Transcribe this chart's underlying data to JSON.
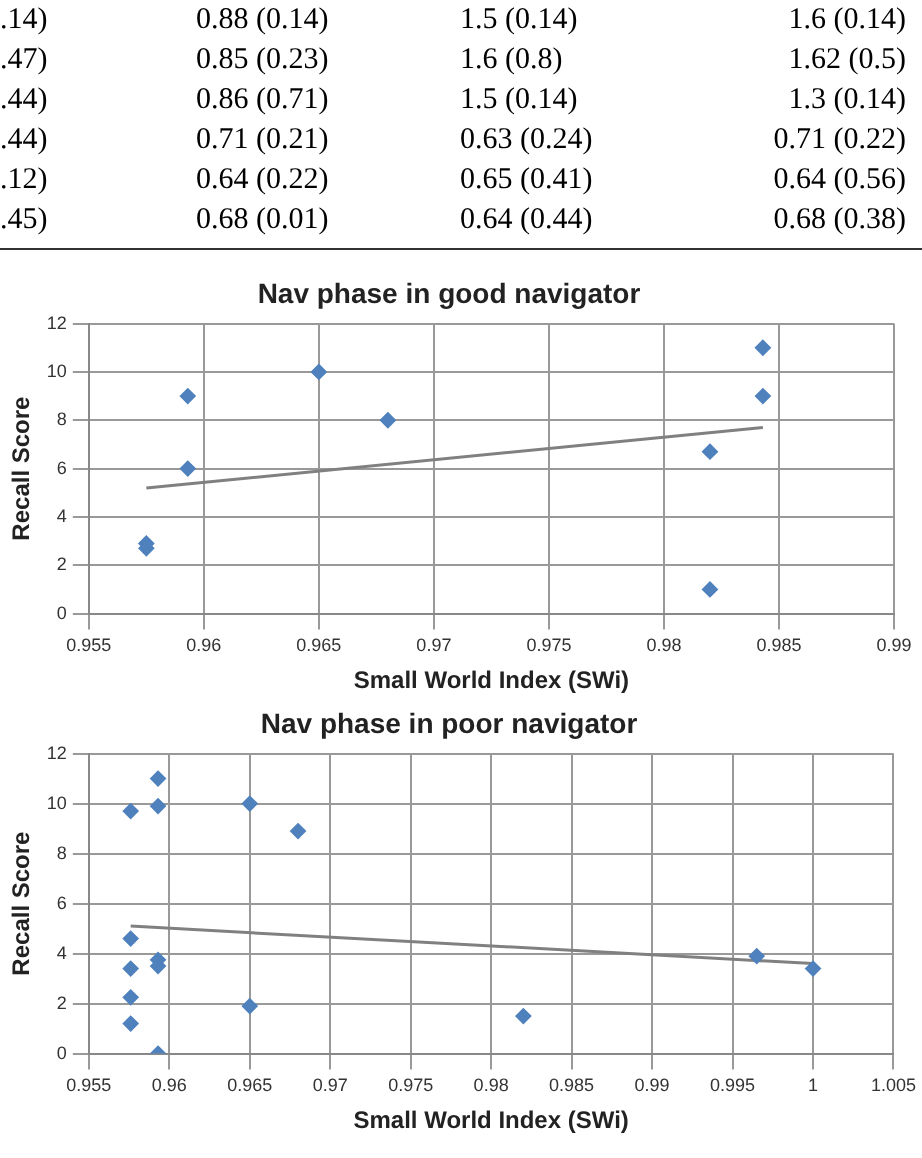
{
  "chart_data": [
    {
      "type": "other",
      "annotations": [
        ".14)",
        "0.88 (0.14)",
        "1.5 (0.14)",
        "1.6 (0.14)",
        ".47)",
        "0.85 (0.23)",
        "1.6 (0.8)",
        "1.62 (0.5)",
        ".44)",
        "0.86 (0.71)",
        "1.5 (0.14)",
        "1.3 (0.14)",
        ".44)",
        "0.71 (0.21)",
        "0.63 (0.24)",
        "0.71 (0.22)",
        ".12)",
        "0.64 (0.22)",
        "0.65 (0.41)",
        "0.64 (0.56)",
        ".45)",
        "0.68 (0.01)",
        "0.64 (0.44)",
        "0.68 (0.38)"
      ]
    },
    {
      "type": "scatter",
      "title": "Nav phase in good navigator",
      "xlabel": "Small World Index (SWi)",
      "ylabel": "Recall Score",
      "xlim": [
        0.955,
        0.99
      ],
      "xticks": [
        0.955,
        0.96,
        0.965,
        0.97,
        0.975,
        0.98,
        0.985,
        0.99
      ],
      "ylim": [
        0,
        12
      ],
      "yticks": [
        0,
        2,
        4,
        6,
        8,
        10,
        12
      ],
      "grid": true,
      "legend": false,
      "series": [
        {
          "type": "scatter",
          "color": "#4f81bd",
          "marker": "diamond",
          "x": [
            0.9575,
            0.9575,
            0.9593,
            0.9593,
            0.965,
            0.968,
            0.982,
            0.982,
            0.9843,
            0.9843
          ],
          "values": [
            2.9,
            2.7,
            9,
            6,
            10,
            8,
            6.7,
            1,
            11,
            9
          ]
        },
        {
          "type": "line",
          "color": "#808080",
          "marker": "none",
          "x": [
            0.9575,
            0.9843
          ],
          "values": [
            5.2,
            7.7
          ]
        }
      ]
    },
    {
      "type": "scatter",
      "title": "Nav phase in poor navigator",
      "xlabel": "Small World Index (SWi)",
      "ylabel": "Recall Score",
      "xlim": [
        0.955,
        1.005
      ],
      "xticks": [
        0.955,
        0.96,
        0.965,
        0.97,
        0.975,
        0.98,
        0.985,
        0.99,
        0.995,
        1,
        1.005
      ],
      "ylim": [
        0,
        12
      ],
      "yticks": [
        0,
        2,
        4,
        6,
        8,
        10,
        12
      ],
      "grid": true,
      "legend": false,
      "series": [
        {
          "type": "scatter",
          "color": "#4f81bd",
          "marker": "diamond",
          "x": [
            0.9576,
            0.9576,
            0.9576,
            0.9576,
            0.9576,
            0.9593,
            0.9593,
            0.9593,
            0.9593,
            0.9593,
            0.965,
            0.965,
            0.968,
            0.982,
            0.9965,
            1.0
          ],
          "values": [
            9.7,
            4.6,
            3.4,
            2.25,
            1.2,
            11,
            9.9,
            3.75,
            3.5,
            0,
            10,
            1.9,
            8.9,
            1.5,
            3.9,
            3.4
          ]
        },
        {
          "type": "line",
          "color": "#808080",
          "marker": "none",
          "x": [
            0.9576,
            1.0
          ],
          "values": [
            5.1,
            3.6
          ]
        }
      ]
    }
  ]
}
